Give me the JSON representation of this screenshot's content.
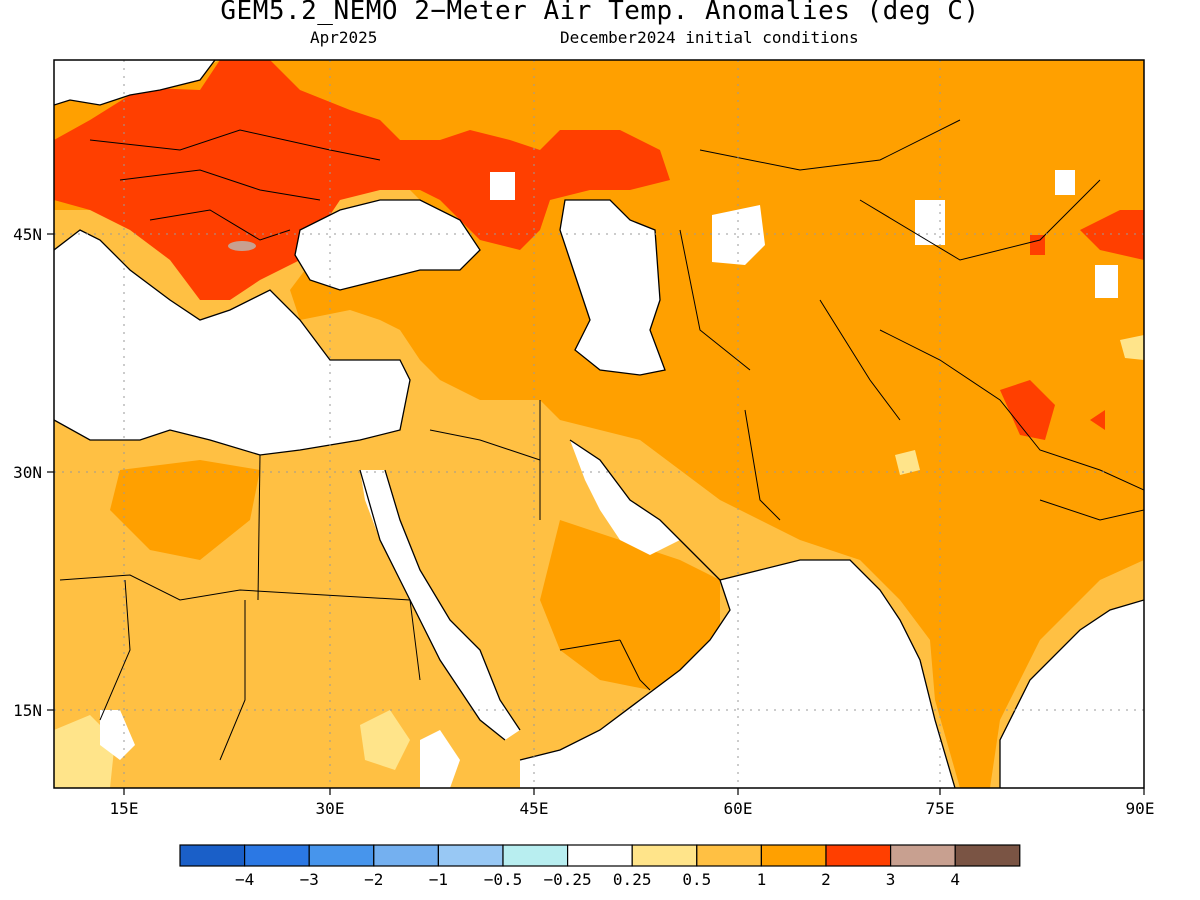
{
  "title": "GEM5.2_NEMO 2−Meter Air Temp. Anomalies (deg C)",
  "subtitle_left": "Apr2025",
  "subtitle_right": "December2024 initial conditions",
  "axes": {
    "x_ticks": [
      "15E",
      "30E",
      "45E",
      "60E",
      "75E",
      "90E"
    ],
    "y_ticks": [
      "45N",
      "30N",
      "15N"
    ],
    "lon_range": [
      10,
      90
    ],
    "lat_range": [
      10,
      55
    ]
  },
  "colorbar": {
    "labels": [
      "−4",
      "−3",
      "−2",
      "−1",
      "−0.5",
      "−0.25",
      "0.25",
      "0.5",
      "1",
      "2",
      "3",
      "4"
    ],
    "colors": [
      "#1a5fc8",
      "#2b78e4",
      "#4795ec",
      "#74b0f0",
      "#98c8f4",
      "#b8eef0",
      "#ffffff",
      "#ffe48a",
      "#ffc043",
      "#ffa000",
      "#ff3f00",
      "#c8a090",
      "#7a5444"
    ]
  },
  "map_colors": {
    "land_background": "#ffc043",
    "anomaly_1_2": "#ffa000",
    "anomaly_2_3": "#ff3f00",
    "anomaly_3_4": "#c8a090",
    "anomaly_0_25_0_5": "#ffe48a",
    "ocean_masked": "#ffffff"
  }
}
